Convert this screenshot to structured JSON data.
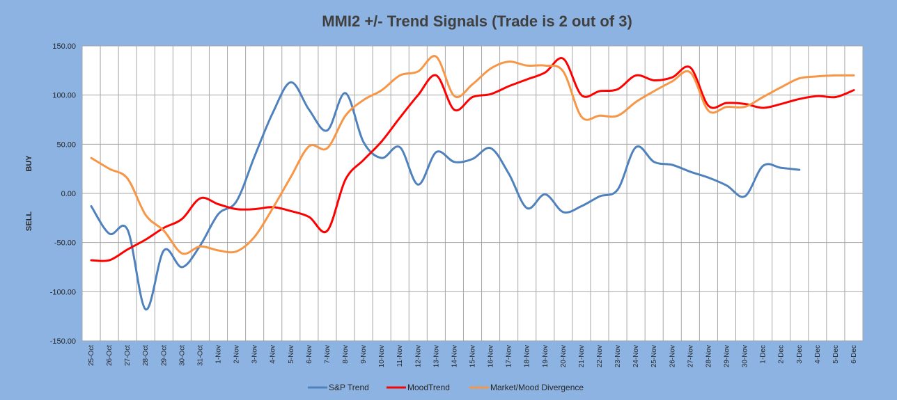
{
  "chart_data": {
    "type": "line",
    "title": "MMI2 +/- Trend Signals (Trade is 2 out of 3)",
    "side_labels": {
      "upper": "BUY",
      "lower": "SELL"
    },
    "ylim": [
      -150,
      150
    ],
    "yticks": [
      150,
      100,
      50,
      0,
      -50,
      -100,
      -150
    ],
    "ytick_labels": [
      "150.00",
      "100.00",
      "50.00",
      "0.00",
      "-50.00",
      "-100.00",
      "-150.00"
    ],
    "grid": true,
    "legend_position": "bottom",
    "categories": [
      "25-Oct",
      "26-Oct",
      "27-Oct",
      "28-Oct",
      "29-Oct",
      "30-Oct",
      "31-Oct",
      "1-Nov",
      "2-Nov",
      "3-Nov",
      "4-Nov",
      "5-Nov",
      "6-Nov",
      "7-Nov",
      "8-Nov",
      "9-Nov",
      "10-Nov",
      "11-Nov",
      "12-Nov",
      "13-Nov",
      "14-Nov",
      "15-Nov",
      "16-Nov",
      "17-Nov",
      "18-Nov",
      "19-Nov",
      "20-Nov",
      "21-Nov",
      "22-Nov",
      "23-Nov",
      "24-Nov",
      "25-Nov",
      "26-Nov",
      "27-Nov",
      "28-Nov",
      "29-Nov",
      "30-Nov",
      "1-Dec",
      "2-Dec",
      "3-Dec",
      "4-Dec",
      "5-Dec",
      "6-Dec"
    ],
    "series": [
      {
        "name": "S&P Trend",
        "color": "#4f81bd",
        "values": [
          -13,
          -41,
          -37,
          -118,
          -58,
          -75,
          -53,
          -21,
          -8,
          38,
          82,
          113,
          85,
          64,
          102,
          52,
          36,
          47,
          9,
          42,
          32,
          35,
          46,
          20,
          -15,
          -1,
          -19,
          -13,
          -3,
          4,
          47,
          32,
          29,
          22,
          16,
          8,
          -3,
          28,
          26,
          24,
          null,
          null,
          null
        ]
      },
      {
        "name": "MoodTrend",
        "color": "#ff0000",
        "values": [
          -68,
          -68,
          -57,
          -47,
          -35,
          -26,
          -5,
          -11,
          -16,
          -16,
          -14,
          -18,
          -24,
          -38,
          14,
          34,
          53,
          77,
          100,
          120,
          85,
          98,
          101,
          109,
          116,
          123,
          137,
          100,
          104,
          106,
          120,
          115,
          118,
          128,
          89,
          92,
          91,
          87,
          91,
          96,
          99,
          98,
          105
        ]
      },
      {
        "name": "Market/Mood Divergence",
        "color": "#f79646",
        "values": [
          36,
          25,
          15,
          -22,
          -38,
          -61,
          -54,
          -58,
          -59,
          -44,
          -15,
          17,
          48,
          46,
          79,
          95,
          105,
          120,
          124,
          139,
          99,
          111,
          127,
          134,
          130,
          130,
          124,
          78,
          79,
          79,
          93,
          104,
          114,
          123,
          84,
          88,
          88,
          98,
          108,
          117,
          119,
          120,
          120
        ]
      }
    ]
  }
}
